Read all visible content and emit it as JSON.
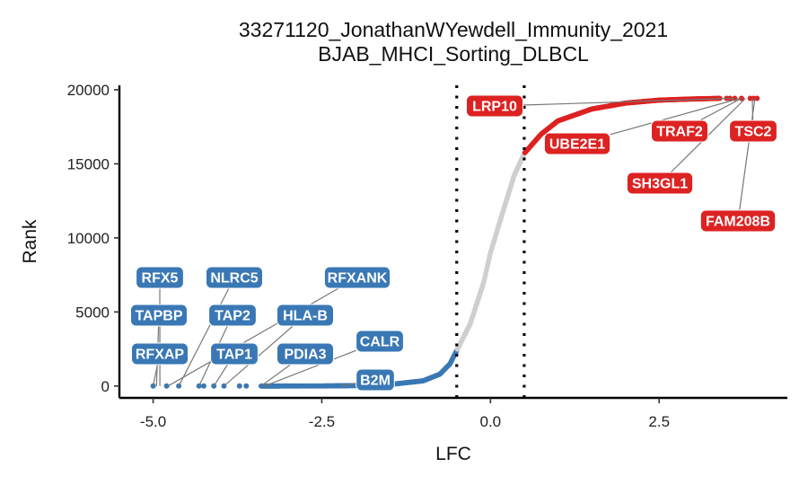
{
  "chart_data": {
    "type": "scatter",
    "title": "33271120_JonathanWYewdell_Immunity_2021",
    "subtitle": "BJAB_MHCI_Sorting_DLBCL",
    "xlabel": "LFC",
    "ylabel": "Rank",
    "xlim": [
      -5.5,
      4.4
    ],
    "ylim": [
      -800,
      20300
    ],
    "x_ticks": [
      -5.0,
      -2.5,
      0.0,
      2.5
    ],
    "x_tick_labels": [
      "-5.0",
      "-2.5",
      "0.0",
      "2.5"
    ],
    "y_ticks": [
      0,
      5000,
      10000,
      15000,
      20000
    ],
    "y_tick_labels": [
      "0",
      "5000",
      "10000",
      "15000",
      "20000"
    ],
    "thresholds": [
      -0.5,
      0.5
    ],
    "legend": "none",
    "grid": false,
    "colors": {
      "negative": "#3a78b5",
      "neutral": "#cfcfcf",
      "positive": "#dd2222"
    },
    "curve_points": [
      [
        -3.4,
        0
      ],
      [
        -2.5,
        4
      ],
      [
        -2.0,
        30
      ],
      [
        -1.5,
        100
      ],
      [
        -1.0,
        350
      ],
      [
        -0.75,
        800
      ],
      [
        -0.6,
        1500
      ],
      [
        -0.5,
        2400
      ],
      [
        -0.3,
        4200
      ],
      [
        -0.1,
        7000
      ],
      [
        0.0,
        9000
      ],
      [
        0.2,
        12000
      ],
      [
        0.35,
        14200
      ],
      [
        0.5,
        15700
      ],
      [
        0.75,
        17000
      ],
      [
        1.0,
        17900
      ],
      [
        1.5,
        18700
      ],
      [
        2.0,
        19100
      ],
      [
        2.5,
        19300
      ],
      [
        3.0,
        19380
      ],
      [
        3.4,
        19420
      ]
    ],
    "negative_sparse_x": [
      -5.0,
      -4.8,
      -4.62,
      -4.32,
      -4.25,
      -4.1,
      -3.95,
      -3.72,
      -3.62
    ],
    "positive_sparse_x": [
      3.5,
      3.55,
      3.62,
      3.72,
      3.85,
      3.9,
      3.95
    ],
    "labeled_genes": [
      {
        "gene": "RFX5",
        "x": -4.9,
        "y": 0,
        "group": "negative"
      },
      {
        "gene": "TAPBP",
        "x": -4.95,
        "y": 0,
        "group": "negative"
      },
      {
        "gene": "RFXAP",
        "x": -5.0,
        "y": 0,
        "group": "negative"
      },
      {
        "gene": "NLRC5",
        "x": -4.62,
        "y": 0,
        "group": "negative"
      },
      {
        "gene": "TAP2",
        "x": -4.32,
        "y": 0,
        "group": "negative"
      },
      {
        "gene": "TAP1",
        "x": -4.1,
        "y": 0,
        "group": "negative"
      },
      {
        "gene": "RFXANK",
        "x": -4.78,
        "y": 0,
        "group": "negative"
      },
      {
        "gene": "HLA-B",
        "x": -3.95,
        "y": 0,
        "group": "negative"
      },
      {
        "gene": "PDIA3",
        "x": -3.4,
        "y": 0,
        "group": "negative"
      },
      {
        "gene": "CALR",
        "x": -3.35,
        "y": 2,
        "group": "negative"
      },
      {
        "gene": "B2M",
        "x": -2.2,
        "y": 20,
        "group": "negative"
      },
      {
        "gene": "LRP10",
        "x": 3.6,
        "y": 19420,
        "group": "positive"
      },
      {
        "gene": "UBE2E1",
        "x": 3.7,
        "y": 19420,
        "group": "positive"
      },
      {
        "gene": "TRAF2",
        "x": 3.72,
        "y": 19420,
        "group": "positive"
      },
      {
        "gene": "TSC2",
        "x": 3.88,
        "y": 19420,
        "group": "positive"
      },
      {
        "gene": "SH3GL1",
        "x": 3.78,
        "y": 19420,
        "group": "positive"
      },
      {
        "gene": "FAM208B",
        "x": 3.92,
        "y": 19420,
        "group": "positive"
      }
    ]
  }
}
